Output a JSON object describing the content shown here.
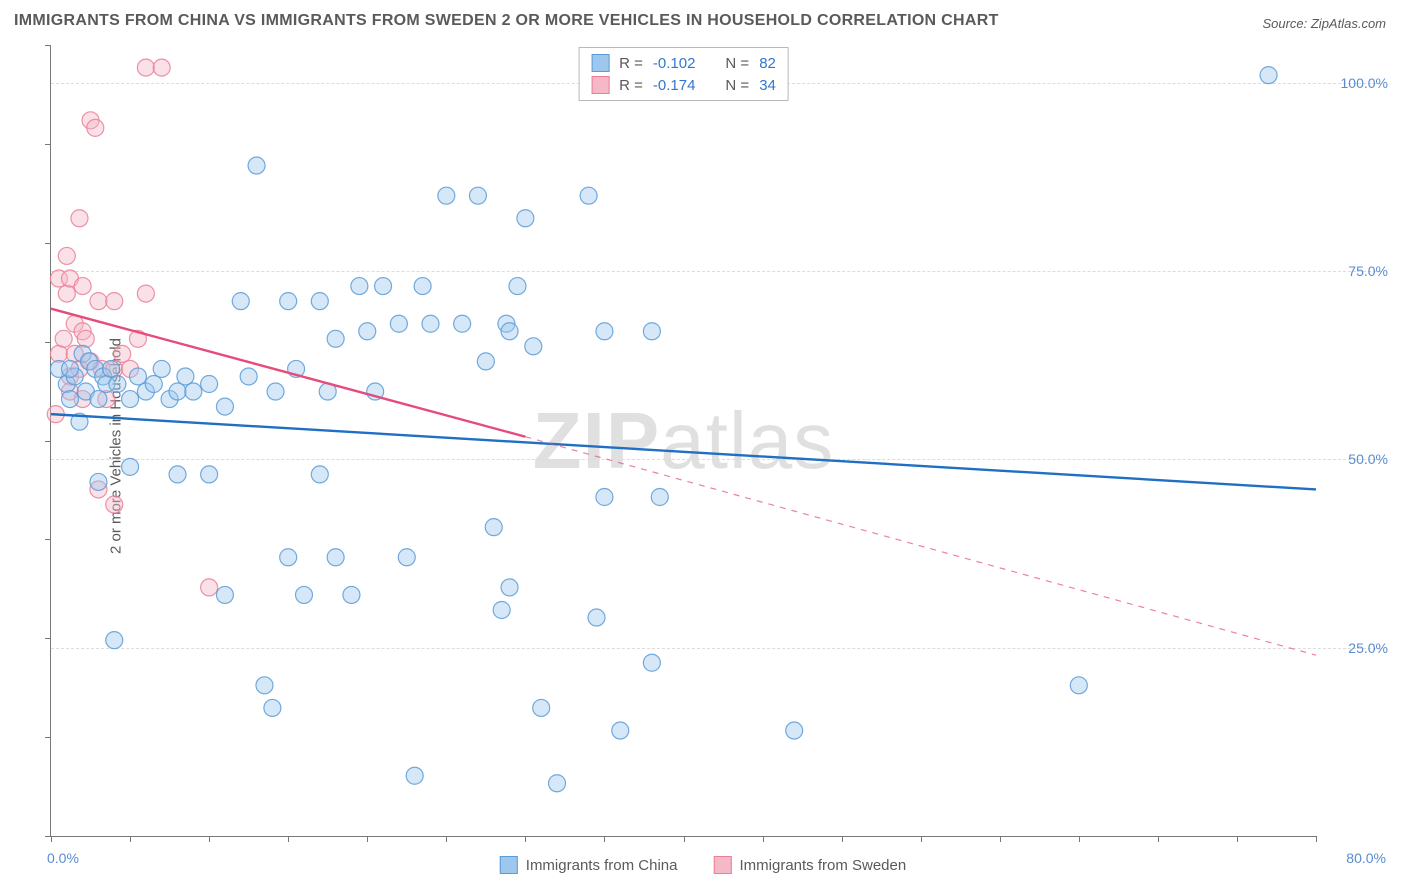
{
  "title": "IMMIGRANTS FROM CHINA VS IMMIGRANTS FROM SWEDEN 2 OR MORE VEHICLES IN HOUSEHOLD CORRELATION CHART",
  "source": "Source: ZipAtlas.com",
  "ylabel": "2 or more Vehicles in Household",
  "watermark_a": "ZIP",
  "watermark_b": "atlas",
  "chart": {
    "type": "scatter",
    "xlim": [
      0,
      80
    ],
    "ylim": [
      0,
      105
    ],
    "x_ticks_labels": {
      "min": "0.0%",
      "max": "80.0%"
    },
    "y_gridlines": [
      25,
      50,
      75,
      100
    ],
    "y_ticks_labels": [
      "25.0%",
      "50.0%",
      "75.0%",
      "100.0%"
    ],
    "grid_color": "#dcdcdc",
    "axis_color": "#777777",
    "background_color": "#ffffff",
    "tick_label_color": "#5a8ccf",
    "text_color": "#5a5a5a",
    "title_fontsize": 16,
    "label_fontsize": 15,
    "tick_fontsize": 14,
    "marker_radius": 8.5,
    "marker_opacity": 0.42,
    "marker_stroke_opacity": 0.85,
    "line_width": 2.4,
    "series": [
      {
        "name": "Immigrants from China",
        "color_fill": "#9ec7ee",
        "color_stroke": "#5a9bd8",
        "line_color": "#1f6fc4",
        "R": "-0.102",
        "N": "82",
        "trend": {
          "x1": 0,
          "y1": 56,
          "x2": 80,
          "y2": 46,
          "dash_from": 80
        },
        "points": [
          [
            0.5,
            62
          ],
          [
            1.0,
            60
          ],
          [
            1.2,
            58
          ],
          [
            1.5,
            61
          ],
          [
            1.8,
            55
          ],
          [
            2.0,
            64
          ],
          [
            2.2,
            59
          ],
          [
            2.4,
            63
          ],
          [
            2.8,
            62
          ],
          [
            3.0,
            58
          ],
          [
            3.0,
            47
          ],
          [
            3.3,
            61
          ],
          [
            3.5,
            60
          ],
          [
            3.8,
            62
          ],
          [
            4.0,
            26
          ],
          [
            4.2,
            60
          ],
          [
            5.0,
            58
          ],
          [
            5.0,
            49
          ],
          [
            5.5,
            61
          ],
          [
            6.0,
            59
          ],
          [
            6.5,
            60
          ],
          [
            7.0,
            62
          ],
          [
            7.5,
            58
          ],
          [
            8.0,
            59
          ],
          [
            8.0,
            48
          ],
          [
            8.5,
            61
          ],
          [
            9.0,
            59
          ],
          [
            10.0,
            60
          ],
          [
            10.0,
            48
          ],
          [
            11.0,
            57
          ],
          [
            11.0,
            32
          ],
          [
            12.0,
            71
          ],
          [
            12.5,
            61
          ],
          [
            13.0,
            89
          ],
          [
            13.5,
            20
          ],
          [
            14.0,
            17
          ],
          [
            14.2,
            59
          ],
          [
            15.0,
            71
          ],
          [
            15.0,
            37
          ],
          [
            15.5,
            62
          ],
          [
            16.0,
            32
          ],
          [
            17.0,
            48
          ],
          [
            17.0,
            71
          ],
          [
            17.5,
            59
          ],
          [
            18.0,
            37
          ],
          [
            18.0,
            66
          ],
          [
            19.0,
            32
          ],
          [
            19.5,
            73
          ],
          [
            20.0,
            67
          ],
          [
            20.5,
            59
          ],
          [
            21.0,
            73
          ],
          [
            22.0,
            68
          ],
          [
            22.5,
            37
          ],
          [
            23.0,
            8
          ],
          [
            23.5,
            73
          ],
          [
            24.0,
            68
          ],
          [
            25.0,
            85
          ],
          [
            26.0,
            68
          ],
          [
            27.0,
            85
          ],
          [
            27.5,
            63
          ],
          [
            28.0,
            41
          ],
          [
            28.5,
            30
          ],
          [
            28.8,
            68
          ],
          [
            29.0,
            33
          ],
          [
            29.0,
            67
          ],
          [
            29.5,
            73
          ],
          [
            30.0,
            82
          ],
          [
            30.5,
            65
          ],
          [
            31.0,
            17
          ],
          [
            32.0,
            7
          ],
          [
            34.0,
            85
          ],
          [
            34.5,
            29
          ],
          [
            35.0,
            67
          ],
          [
            35.0,
            45
          ],
          [
            36.0,
            14
          ],
          [
            38.0,
            67
          ],
          [
            38.0,
            23
          ],
          [
            38.5,
            45
          ],
          [
            47.0,
            14
          ],
          [
            65.0,
            20
          ],
          [
            77.0,
            101
          ],
          [
            1.2,
            62
          ]
        ]
      },
      {
        "name": "Immigrants from Sweden",
        "color_fill": "#f4b8c6",
        "color_stroke": "#eb7e99",
        "line_color": "#e64b7a",
        "R": "-0.174",
        "N": "34",
        "trend": {
          "x1": 0,
          "y1": 70,
          "x2": 30,
          "y2": 53,
          "dash_from": 30,
          "x3": 80,
          "y3": 24
        },
        "points": [
          [
            0.3,
            56
          ],
          [
            0.5,
            64
          ],
          [
            0.5,
            74
          ],
          [
            0.8,
            66
          ],
          [
            1.0,
            77
          ],
          [
            1.0,
            72
          ],
          [
            1.2,
            61
          ],
          [
            1.2,
            74
          ],
          [
            1.2,
            59
          ],
          [
            1.5,
            64
          ],
          [
            1.5,
            68
          ],
          [
            1.8,
            82
          ],
          [
            1.8,
            62
          ],
          [
            2.0,
            73
          ],
          [
            2.0,
            67
          ],
          [
            2.0,
            58
          ],
          [
            2.2,
            66
          ],
          [
            2.5,
            95
          ],
          [
            2.5,
            63
          ],
          [
            2.8,
            94
          ],
          [
            3.0,
            46
          ],
          [
            3.0,
            71
          ],
          [
            3.2,
            62
          ],
          [
            3.5,
            58
          ],
          [
            4.0,
            71
          ],
          [
            4.0,
            62
          ],
          [
            4.0,
            44
          ],
          [
            4.5,
            64
          ],
          [
            5.0,
            62
          ],
          [
            5.5,
            66
          ],
          [
            6.0,
            102
          ],
          [
            6.0,
            72
          ],
          [
            7.0,
            102
          ],
          [
            10.0,
            33
          ]
        ]
      }
    ]
  },
  "legend": {
    "series_a": "Immigrants from China",
    "series_b": "Immigrants from Sweden"
  },
  "top_legend": {
    "r_label": "R =",
    "n_label": "N ="
  }
}
